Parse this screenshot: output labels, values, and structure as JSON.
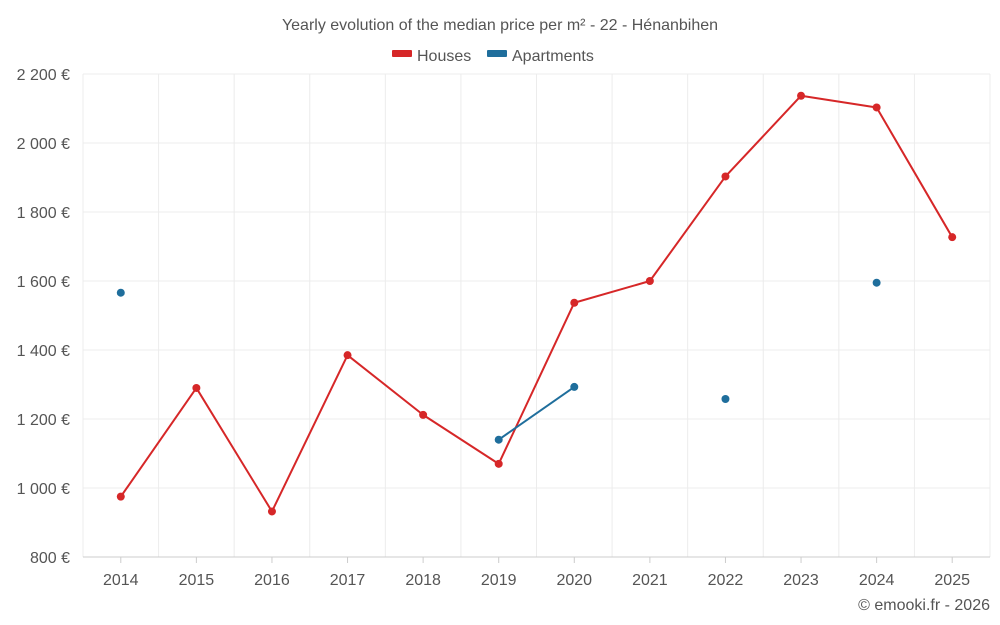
{
  "chart_data": {
    "type": "line",
    "title": "Yearly evolution of the median price per m² - 22 - Hénanbihen",
    "categories": [
      "2014",
      "2015",
      "2016",
      "2017",
      "2018",
      "2019",
      "2020",
      "2021",
      "2022",
      "2023",
      "2024",
      "2025"
    ],
    "ylim": [
      800,
      2200
    ],
    "yticks": [
      800,
      1000,
      1200,
      1400,
      1600,
      1800,
      2000,
      2200
    ],
    "ytick_labels": [
      "800 €",
      "1 000 €",
      "1 200 €",
      "1 400 €",
      "1 600 €",
      "1 800 €",
      "2 000 €",
      "2 200 €"
    ],
    "grid": true,
    "legend_position": "top-center",
    "series": [
      {
        "name": "Houses",
        "color": "#d62728",
        "values": [
          975,
          1290,
          932,
          1385,
          1212,
          1070,
          1537,
          1600,
          1903,
          2137,
          2103,
          1727
        ]
      },
      {
        "name": "Apartments",
        "color": "#1f6e9c",
        "values": [
          1566,
          null,
          null,
          null,
          null,
          1140,
          1293,
          null,
          1258,
          null,
          1595,
          null
        ]
      }
    ]
  },
  "credit": "© emooki.fr - 2026"
}
